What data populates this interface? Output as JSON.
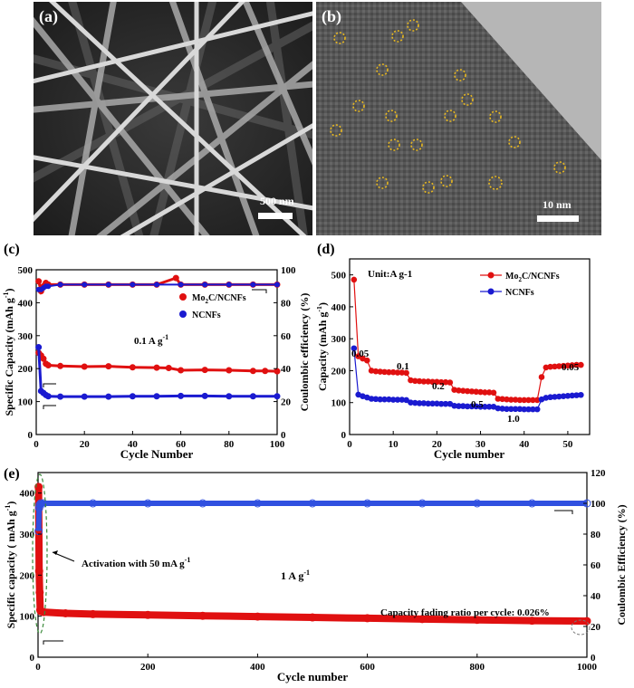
{
  "panel_a": {
    "label": "(a)",
    "scale_bar": "500 nm",
    "type": "SEM micrograph of nanofibers"
  },
  "panel_b": {
    "label": "(b)",
    "scale_bar": "10 nm",
    "type": "TEM micrograph with circled nanoparticles"
  },
  "chart_data": [
    {
      "panel": "(c)",
      "type": "scatter",
      "xlabel": "Cycle Number",
      "ylabel": "Specific Capacity (mAh g-1)",
      "ylabel2": "Coulombic efficiency (%)",
      "xlim": [
        0,
        100
      ],
      "ylim": [
        0,
        500
      ],
      "ylim2": [
        0,
        100
      ],
      "xticks": [
        "0",
        "20",
        "40",
        "60",
        "80",
        "100"
      ],
      "yticks": [
        "0",
        "100",
        "200",
        "300",
        "400",
        "500"
      ],
      "yticks2": [
        "0",
        "20",
        "40",
        "60",
        "80",
        "100"
      ],
      "annotation": "0.1 A g-1",
      "legend": [
        "Mo2C/NCNFs",
        "NCNFs"
      ],
      "series": [
        {
          "name": "Mo2C/NCNFs capacity",
          "color": "#e01010",
          "x": [
            1,
            2,
            3,
            4,
            5,
            10,
            20,
            30,
            40,
            50,
            55,
            60,
            70,
            80,
            90,
            95,
            100
          ],
          "values": [
            248,
            240,
            230,
            215,
            210,
            208,
            206,
            207,
            204,
            203,
            202,
            195,
            196,
            195,
            193,
            193,
            192
          ]
        },
        {
          "name": "NCNFs capacity",
          "color": "#1a1ad0",
          "x": [
            1,
            2,
            3,
            4,
            5,
            10,
            20,
            30,
            40,
            50,
            60,
            70,
            80,
            90,
            100
          ],
          "values": [
            265,
            132,
            126,
            120,
            116,
            115,
            115,
            115,
            116,
            116,
            117,
            117,
            116,
            116,
            116
          ]
        },
        {
          "name": "Mo2C/NCNFs coulombic efficiency",
          "color": "#e01010",
          "x": [
            1,
            2,
            3,
            4,
            5,
            10,
            20,
            30,
            40,
            50,
            58,
            60,
            70,
            80,
            90,
            100
          ],
          "values": [
            93,
            87,
            90,
            92,
            91,
            91,
            91,
            91,
            91,
            91,
            95,
            91,
            91,
            91,
            91,
            91
          ]
        },
        {
          "name": "NCNFs coulombic efficiency",
          "color": "#1a1ad0",
          "x": [
            1,
            2,
            3,
            4,
            5,
            10,
            20,
            30,
            40,
            50,
            60,
            70,
            80,
            90,
            100
          ],
          "values": [
            88,
            88,
            89,
            90,
            90,
            91,
            91,
            91,
            91,
            91,
            91,
            91,
            91,
            91,
            91
          ]
        }
      ]
    },
    {
      "panel": "(d)",
      "type": "line",
      "xlabel": "Cycle number",
      "ylabel": "Capacity (mAh g-1)",
      "xlim": [
        0,
        55
      ],
      "ylim": [
        0,
        550
      ],
      "xticks": [
        "0",
        "10",
        "20",
        "30",
        "40",
        "50"
      ],
      "yticks": [
        "0",
        "100",
        "200",
        "300",
        "400",
        "500"
      ],
      "unit_label": "Unit:A g-1",
      "rate_labels": [
        "0.05",
        "0.1",
        "0.2",
        "0.5",
        "1.0",
        "0.05"
      ],
      "legend": [
        "Mo2C/NCNFs",
        "NCNFs"
      ],
      "series": [
        {
          "name": "Mo2C/NCNFs",
          "color": "#e01010",
          "x": [
            1,
            2,
            3,
            4,
            5,
            6,
            7,
            8,
            9,
            10,
            11,
            12,
            13,
            14,
            15,
            16,
            17,
            18,
            19,
            20,
            21,
            22,
            23,
            24,
            25,
            26,
            27,
            28,
            29,
            30,
            31,
            32,
            33,
            34,
            35,
            36,
            37,
            38,
            39,
            40,
            41,
            42,
            43,
            44,
            45,
            46,
            47,
            48,
            49,
            50,
            51,
            52,
            53
          ],
          "values": [
            485,
            245,
            238,
            232,
            200,
            198,
            197,
            196,
            195,
            195,
            194,
            194,
            193,
            170,
            168,
            167,
            166,
            166,
            165,
            165,
            164,
            164,
            163,
            140,
            138,
            137,
            136,
            135,
            134,
            133,
            132,
            132,
            131,
            112,
            111,
            110,
            109,
            109,
            108,
            108,
            108,
            108,
            108,
            180,
            210,
            212,
            213,
            214,
            215,
            216,
            217,
            218,
            218
          ]
        },
        {
          "name": "NCNFs",
          "color": "#1a1ad0",
          "x": [
            1,
            2,
            3,
            4,
            5,
            6,
            7,
            8,
            9,
            10,
            11,
            12,
            13,
            14,
            15,
            16,
            17,
            18,
            19,
            20,
            21,
            22,
            23,
            24,
            25,
            26,
            27,
            28,
            29,
            30,
            31,
            32,
            33,
            34,
            35,
            36,
            37,
            38,
            39,
            40,
            41,
            42,
            43,
            44,
            45,
            46,
            47,
            48,
            49,
            50,
            51,
            52,
            53
          ],
          "values": [
            270,
            125,
            120,
            116,
            112,
            111,
            110,
            110,
            110,
            109,
            109,
            109,
            108,
            100,
            99,
            98,
            98,
            97,
            97,
            97,
            96,
            96,
            96,
            90,
            89,
            89,
            88,
            88,
            88,
            87,
            87,
            87,
            87,
            82,
            81,
            80,
            80,
            80,
            80,
            79,
            79,
            79,
            79,
            110,
            115,
            117,
            118,
            119,
            120,
            121,
            122,
            123,
            124
          ]
        }
      ]
    },
    {
      "panel": "(e)",
      "type": "scatter",
      "xlabel": "Cycle number",
      "ylabel": "Specific capacity ( mAh g-1)",
      "ylabel2": "Coulombic Efficiency (%)",
      "xlim": [
        0,
        1000
      ],
      "ylim": [
        0,
        450
      ],
      "ylim2": [
        0,
        120
      ],
      "xticks": [
        "0",
        "200",
        "400",
        "600",
        "800",
        "1000"
      ],
      "yticks": [
        "0",
        "100",
        "200",
        "300",
        "400"
      ],
      "yticks2": [
        "0",
        "20",
        "40",
        "60",
        "80",
        "100",
        "120"
      ],
      "annotations": [
        "Activation with 50 mA g-1",
        "1 A g-1",
        "Capacity fading ratio per cycle: 0.026%"
      ],
      "series": [
        {
          "name": "Specific capacity",
          "color": "#e01010",
          "x": [
            1,
            2,
            3,
            4,
            5,
            10,
            50,
            100,
            200,
            300,
            400,
            500,
            600,
            700,
            800,
            900,
            1000
          ],
          "values": [
            415,
            210,
            158,
            115,
            112,
            110,
            107,
            105,
            103,
            101,
            99,
            97,
            95,
            93,
            91,
            89,
            88
          ]
        },
        {
          "name": "Coulombic efficiency",
          "color": "#3050e0",
          "x": [
            1,
            2,
            3,
            5,
            10,
            100,
            200,
            300,
            400,
            500,
            600,
            700,
            800,
            900,
            1000
          ],
          "values": [
            82,
            97,
            99,
            100,
            100,
            100,
            100,
            100,
            100,
            100,
            100,
            100,
            100,
            100,
            100
          ]
        }
      ]
    }
  ]
}
